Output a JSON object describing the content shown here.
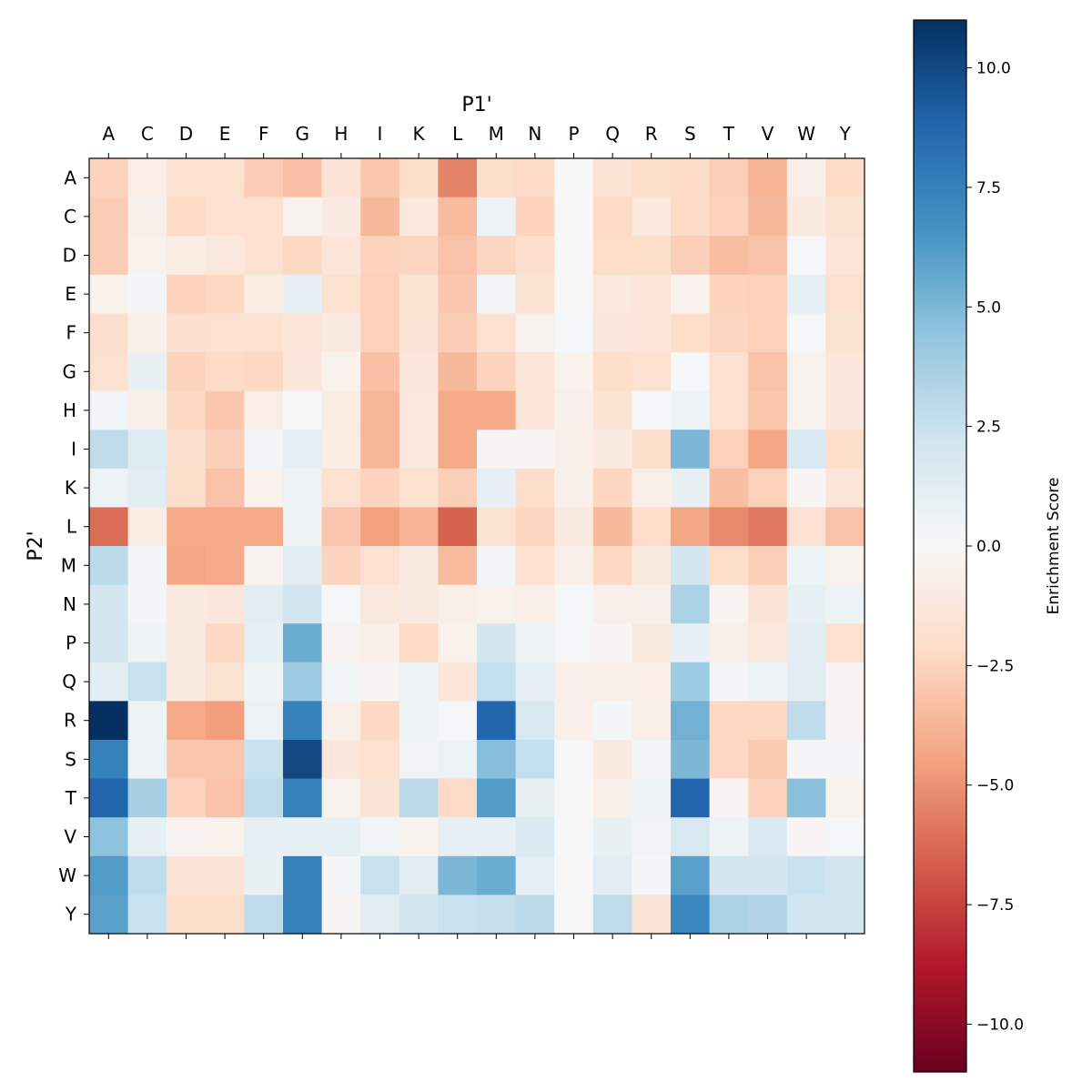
{
  "chart_data": {
    "type": "heatmap",
    "title": "",
    "xlabel": "P1'",
    "ylabel": "P2'",
    "x_categories": [
      "A",
      "C",
      "D",
      "E",
      "F",
      "G",
      "H",
      "I",
      "K",
      "L",
      "M",
      "N",
      "P",
      "Q",
      "R",
      "S",
      "T",
      "V",
      "W",
      "Y"
    ],
    "y_categories": [
      "A",
      "C",
      "D",
      "E",
      "F",
      "G",
      "H",
      "I",
      "K",
      "L",
      "M",
      "N",
      "P",
      "Q",
      "R",
      "S",
      "T",
      "V",
      "W",
      "Y"
    ],
    "colormap": "RdBu",
    "vmin": -11,
    "vmax": 11,
    "colorbar": {
      "label": "Enrichment Score",
      "ticks": [
        10.0,
        7.5,
        5.0,
        2.5,
        0.0,
        -2.5,
        -5.0,
        -7.5,
        -10.0
      ],
      "tick_labels": [
        "10.0",
        "7.5",
        "5.0",
        "2.5",
        "0.0",
        "−2.5",
        "−5.0",
        "−7.5",
        "−10.0"
      ]
    },
    "values": [
      [
        -2.5,
        -0.8,
        -1.8,
        -1.8,
        -2.8,
        -3.3,
        -1.5,
        -3.0,
        -2.0,
        -5.5,
        -2.0,
        -2.2,
        0.0,
        -1.6,
        -2.0,
        -2.2,
        -2.7,
        -3.8,
        -0.7,
        -2.2
      ],
      [
        -2.8,
        -0.6,
        -2.2,
        -1.7,
        -1.8,
        -0.4,
        -1.0,
        -3.6,
        -1.2,
        -3.5,
        0.6,
        -2.5,
        0.0,
        -2.2,
        -1.2,
        -2.2,
        -2.6,
        -3.6,
        -1.0,
        -1.6
      ],
      [
        -2.8,
        -0.5,
        -0.9,
        -1.2,
        -1.7,
        -2.3,
        -1.4,
        -2.5,
        -2.4,
        -3.2,
        -2.4,
        -1.9,
        0.0,
        -2.1,
        -2.0,
        -2.7,
        -3.4,
        -3.2,
        0.1,
        -1.4
      ],
      [
        -0.5,
        0.2,
        -2.5,
        -2.3,
        -0.9,
        1.0,
        -1.8,
        -2.6,
        -1.6,
        -3.0,
        0.2,
        -1.6,
        0.0,
        -1.2,
        -1.4,
        -0.5,
        -2.5,
        -2.6,
        1.0,
        -1.8
      ],
      [
        -1.9,
        -0.6,
        -1.9,
        -1.7,
        -1.8,
        -1.4,
        -1.0,
        -2.6,
        -1.5,
        -2.8,
        -1.8,
        -0.4,
        0.1,
        -1.3,
        -1.4,
        -2.0,
        -2.4,
        -2.6,
        0.1,
        -1.6
      ],
      [
        -1.8,
        0.8,
        -2.5,
        -2.2,
        -2.3,
        -1.3,
        -0.5,
        -3.3,
        -1.3,
        -3.6,
        -2.5,
        -1.4,
        -0.5,
        -2.0,
        -1.8,
        0.1,
        -1.7,
        -3.2,
        -0.4,
        -1.3
      ],
      [
        0.4,
        -0.6,
        -2.3,
        -3.0,
        -0.8,
        0.0,
        -0.9,
        -3.7,
        -1.2,
        -4.2,
        -4.2,
        -1.4,
        -0.6,
        -1.6,
        0.1,
        0.5,
        -1.7,
        -3.1,
        -0.4,
        -1.3
      ],
      [
        2.8,
        1.5,
        -1.9,
        -2.7,
        0.3,
        1.1,
        -0.9,
        -3.7,
        -1.2,
        -4.2,
        -0.2,
        -0.2,
        -0.7,
        -1.0,
        -2.0,
        5.0,
        -2.6,
        -4.3,
        1.8,
        -2.0
      ],
      [
        0.6,
        1.3,
        -2.0,
        -3.2,
        -0.5,
        0.7,
        -1.8,
        -2.5,
        -1.8,
        -2.7,
        1.0,
        -2.0,
        -0.6,
        -2.4,
        -0.7,
        0.8,
        -3.4,
        -2.6,
        -0.2,
        -1.4
      ],
      [
        -6.2,
        -0.9,
        -4.2,
        -4.2,
        -4.2,
        0.6,
        -3.0,
        -4.5,
        -3.8,
        -6.5,
        -1.6,
        -2.4,
        -1.1,
        -3.6,
        -2.1,
        -4.3,
        -5.3,
        -5.8,
        -1.7,
        -3.2
      ],
      [
        3.0,
        0.2,
        -4.3,
        -4.2,
        -0.4,
        1.2,
        -2.5,
        -1.7,
        -1.0,
        -3.5,
        0.3,
        -1.8,
        -0.6,
        -2.3,
        -1.1,
        2.0,
        -2.0,
        -2.7,
        0.5,
        -0.4
      ],
      [
        2.0,
        0.2,
        -1.1,
        -1.3,
        1.3,
        2.0,
        0.1,
        -1.2,
        -1.0,
        -0.7,
        -0.5,
        -0.7,
        0.1,
        -0.6,
        -0.6,
        3.5,
        -0.3,
        -1.5,
        1.0,
        0.5
      ],
      [
        2.0,
        0.5,
        -1.0,
        -2.3,
        1.0,
        5.5,
        -0.3,
        -0.7,
        -2.2,
        -0.5,
        2.0,
        0.6,
        0.1,
        -0.2,
        -1.1,
        1.0,
        -0.6,
        -1.2,
        1.2,
        -1.8
      ],
      [
        1.2,
        2.5,
        -1.0,
        -1.6,
        0.5,
        4.0,
        0.3,
        -0.2,
        0.5,
        -1.4,
        2.7,
        1.1,
        -0.6,
        -0.7,
        -0.8,
        4.0,
        0.2,
        0.5,
        1.2,
        -0.3
      ],
      [
        11.0,
        0.6,
        -4.2,
        -4.6,
        0.7,
        7.5,
        -0.6,
        -2.3,
        0.5,
        0.1,
        8.7,
        1.8,
        -0.7,
        0.2,
        -0.7,
        5.3,
        -2.3,
        -2.3,
        2.8,
        -0.3
      ],
      [
        7.5,
        0.6,
        -3.0,
        -3.0,
        2.5,
        10.0,
        -1.3,
        -1.8,
        0.4,
        0.7,
        4.7,
        2.7,
        0.0,
        -1.1,
        0.2,
        5.0,
        -2.3,
        -2.9,
        0.2,
        0.2
      ],
      [
        8.8,
        3.7,
        -2.5,
        -3.2,
        2.8,
        7.5,
        -0.4,
        -1.5,
        3.0,
        -2.2,
        6.2,
        0.8,
        0.0,
        -0.6,
        0.5,
        8.8,
        -0.3,
        -2.6,
        4.6,
        -0.4
      ],
      [
        4.5,
        0.9,
        -0.3,
        -0.5,
        1.0,
        1.0,
        1.0,
        0.4,
        -0.4,
        1.0,
        1.0,
        1.7,
        0.0,
        0.8,
        0.4,
        1.8,
        0.6,
        1.7,
        -0.2,
        0.1
      ],
      [
        6.2,
        2.8,
        -1.5,
        -1.5,
        0.8,
        7.5,
        0.2,
        2.5,
        1.3,
        5.0,
        5.5,
        1.1,
        0.0,
        1.3,
        0.2,
        6.0,
        2.0,
        2.0,
        2.5,
        2.2
      ],
      [
        6.0,
        2.5,
        -2.0,
        -2.0,
        2.8,
        7.5,
        -0.2,
        1.2,
        2.0,
        2.5,
        2.6,
        2.9,
        0.0,
        2.8,
        -1.5,
        7.2,
        3.5,
        3.3,
        2.2,
        2.2
      ]
    ]
  }
}
